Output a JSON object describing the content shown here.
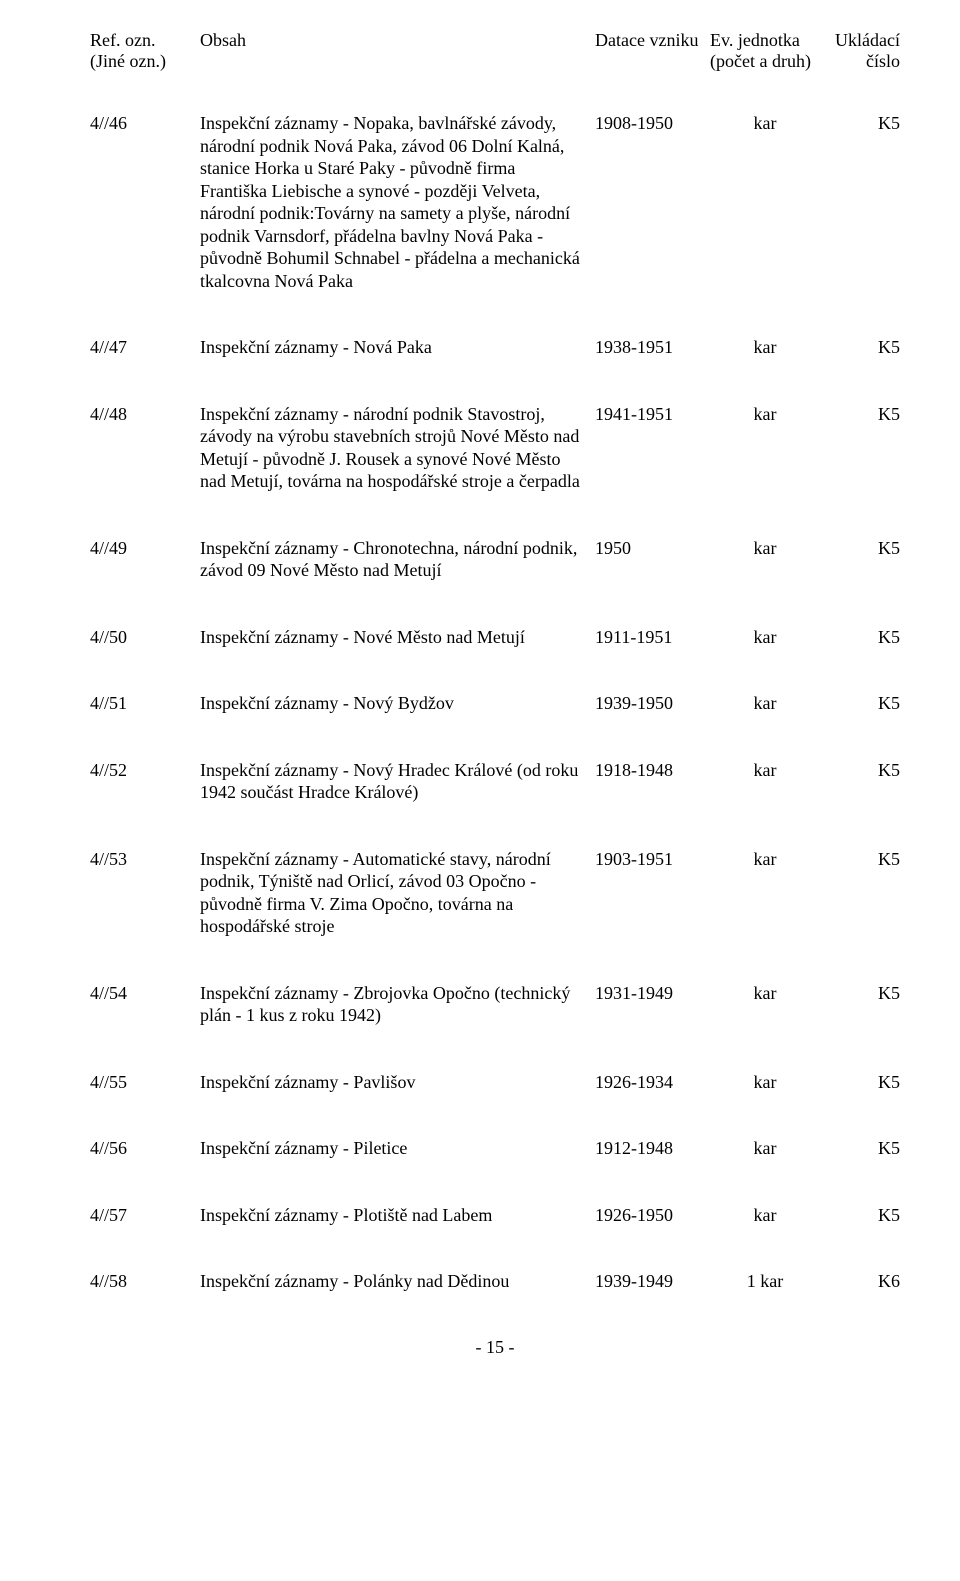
{
  "header": {
    "ref": "Ref. ozn.",
    "ref2": "(Jiné ozn.)",
    "obsah": "Obsah",
    "date": "Datace vzniku",
    "unit": "Ev. jednotka",
    "unit2": "(počet a druh)",
    "store": "Ukládací",
    "store2": "číslo"
  },
  "rows": [
    {
      "ref": "4//46",
      "desc": "Inspekční záznamy - Nopaka, bavlnářské závody, národní podnik Nová Paka, závod 06 Dolní Kalná, stanice Horka u Staré Paky - původně firma Františka Liebische a synové - později Velveta, národní podnik:Továrny na samety a plyše, národní podnik Varnsdorf, přádelna bavlny Nová Paka - původně Bohumil Schnabel - přádelna a mechanická tkalcovna Nová Paka",
      "date": "1908-1950",
      "unit": "kar",
      "store": "K5"
    },
    {
      "ref": "4//47",
      "desc": "Inspekční záznamy - Nová Paka",
      "date": "1938-1951",
      "unit": "kar",
      "store": "K5"
    },
    {
      "ref": "4//48",
      "desc": "Inspekční záznamy - národní podnik Stavostroj, závody na výrobu stavebních strojů Nové Město nad Metují - původně J. Rousek a synové Nové Město nad Metují, továrna na hospodářské stroje a čerpadla",
      "date": "1941-1951",
      "unit": "kar",
      "store": "K5"
    },
    {
      "ref": "4//49",
      "desc": "Inspekční záznamy - Chronotechna, národní podnik, závod 09 Nové Město nad Metují",
      "date": "1950",
      "unit": "kar",
      "store": "K5"
    },
    {
      "ref": "4//50",
      "desc": "Inspekční záznamy - Nové Město nad Metují",
      "date": "1911-1951",
      "unit": "kar",
      "store": "K5"
    },
    {
      "ref": "4//51",
      "desc": "Inspekční záznamy - Nový Bydžov",
      "date": "1939-1950",
      "unit": "kar",
      "store": "K5"
    },
    {
      "ref": "4//52",
      "desc": "Inspekční záznamy - Nový Hradec Králové (od roku 1942 součást Hradce Králové)",
      "date": "1918-1948",
      "unit": "kar",
      "store": "K5"
    },
    {
      "ref": "4//53",
      "desc": "Inspekční záznamy - Automatické stavy, národní podnik, Týniště nad Orlicí, závod 03 Opočno - původně firma V. Zima Opočno, továrna na hospodářské stroje",
      "date": "1903-1951",
      "unit": "kar",
      "store": "K5"
    },
    {
      "ref": "4//54",
      "desc": "Inspekční záznamy - Zbrojovka Opočno (technický plán - 1 kus z roku 1942)",
      "date": "1931-1949",
      "unit": "kar",
      "store": "K5"
    },
    {
      "ref": "4//55",
      "desc": "Inspekční záznamy - Pavlišov",
      "date": "1926-1934",
      "unit": "kar",
      "store": "K5"
    },
    {
      "ref": "4//56",
      "desc": "Inspekční záznamy - Piletice",
      "date": "1912-1948",
      "unit": "kar",
      "store": "K5"
    },
    {
      "ref": "4//57",
      "desc": "Inspekční záznamy - Plotiště nad Labem",
      "date": "1926-1950",
      "unit": "kar",
      "store": "K5"
    },
    {
      "ref": "4//58",
      "desc": "Inspekční záznamy - Polánky nad Dědinou",
      "date": "1939-1949",
      "unit": "1 kar",
      "store": "K6"
    }
  ],
  "page_num": "- 15 -"
}
